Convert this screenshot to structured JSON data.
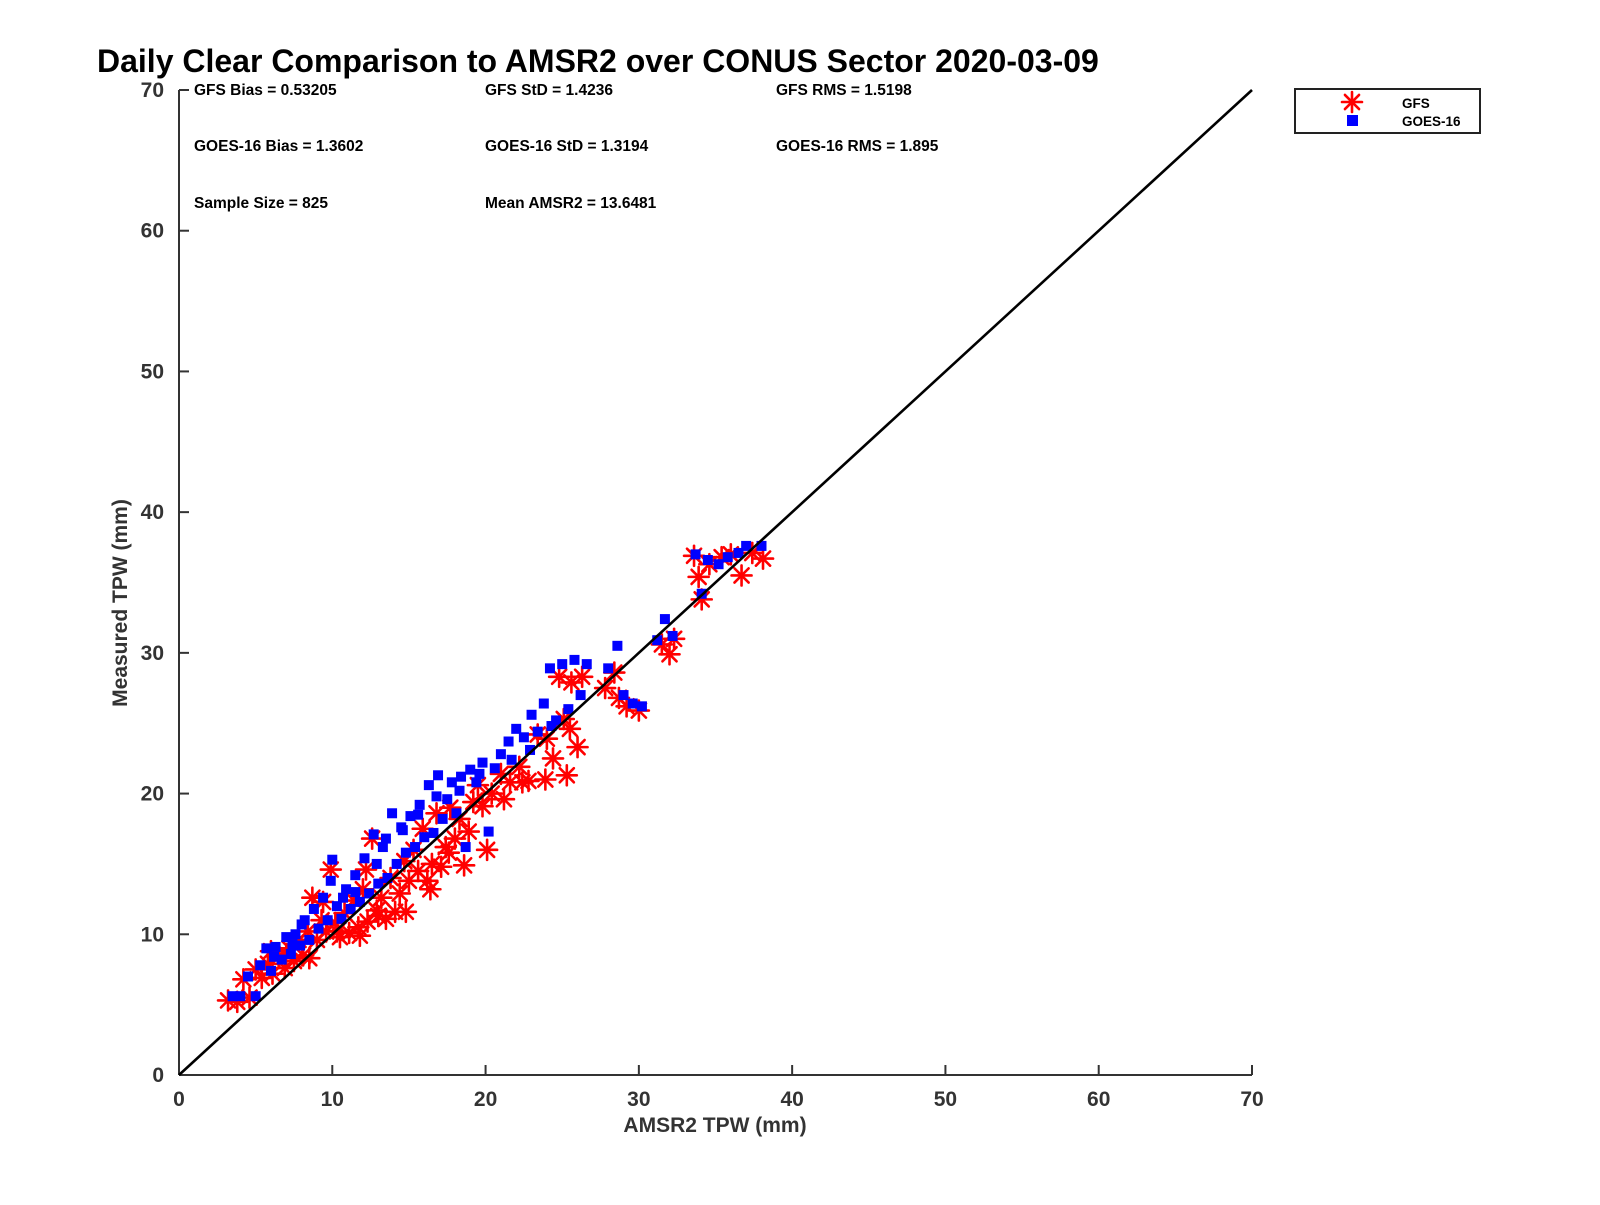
{
  "chart_data": {
    "type": "scatter",
    "title": "Daily Clear Comparison to AMSR2 over CONUS Sector 2020-03-09",
    "xlabel": "AMSR2 TPW (mm)",
    "ylabel": "Measured TPW (mm)",
    "xlim": [
      0,
      70
    ],
    "ylim": [
      0,
      70
    ],
    "xticks": [
      "0",
      "10",
      "20",
      "30",
      "40",
      "50",
      "60",
      "70"
    ],
    "yticks": [
      "0",
      "10",
      "20",
      "30",
      "40",
      "50",
      "60",
      "70"
    ],
    "grid": false,
    "legend_position": "outside-top-right",
    "reference_line": {
      "x": [
        0,
        70
      ],
      "y": [
        0,
        70
      ],
      "color": "#000000"
    },
    "stats": [
      [
        "GFS Bias = 0.53205",
        "GFS StD = 1.4236",
        "GFS RMS = 1.5198"
      ],
      [
        "GOES-16 Bias = 1.3602",
        "GOES-16 StD = 1.3194",
        "GOES-16 RMS = 1.895"
      ],
      [
        "Sample Size = 825",
        "Mean AMSR2 = 13.6481",
        ""
      ]
    ],
    "series": [
      {
        "name": "GFS",
        "marker": "asterisk",
        "color": "#ff0000",
        "points": [
          [
            3.2,
            5.3
          ],
          [
            3.8,
            5.2
          ],
          [
            4.2,
            6.8
          ],
          [
            4.6,
            5.5
          ],
          [
            5.0,
            7.5
          ],
          [
            5.4,
            6.9
          ],
          [
            5.8,
            7.9
          ],
          [
            6.1,
            7.2
          ],
          [
            6.5,
            8.4
          ],
          [
            6.9,
            7.6
          ],
          [
            7.2,
            9.0
          ],
          [
            7.5,
            8.1
          ],
          [
            7.8,
            9.6
          ],
          [
            8.1,
            8.5
          ],
          [
            8.4,
            10.2
          ],
          [
            8.7,
            12.6
          ],
          [
            9.0,
            9.6
          ],
          [
            9.3,
            11.0
          ],
          [
            9.6,
            10.2
          ],
          [
            9.9,
            14.6
          ],
          [
            10.2,
            10.8
          ],
          [
            10.5,
            9.8
          ],
          [
            10.8,
            11.5
          ],
          [
            11.1,
            10.1
          ],
          [
            11.4,
            12.4
          ],
          [
            11.7,
            10.5
          ],
          [
            12.0,
            13.2
          ],
          [
            12.3,
            10.9
          ],
          [
            12.6,
            16.8
          ],
          [
            12.9,
            11.7
          ],
          [
            13.2,
            12.6
          ],
          [
            13.5,
            11.1
          ],
          [
            13.8,
            14.0
          ],
          [
            14.1,
            11.6
          ],
          [
            14.4,
            12.9
          ],
          [
            14.7,
            15.2
          ],
          [
            15.0,
            13.8
          ],
          [
            15.3,
            16.0
          ],
          [
            15.6,
            14.5
          ],
          [
            15.9,
            17.5
          ],
          [
            16.2,
            13.8
          ],
          [
            16.5,
            15.0
          ],
          [
            16.8,
            18.6
          ],
          [
            17.1,
            14.8
          ],
          [
            17.4,
            16.2
          ],
          [
            17.7,
            19.0
          ],
          [
            18.0,
            16.8
          ],
          [
            18.3,
            18.2
          ],
          [
            18.6,
            14.9
          ],
          [
            18.9,
            17.3
          ],
          [
            19.2,
            19.4
          ],
          [
            19.5,
            20.6
          ],
          [
            20.1,
            16.0
          ],
          [
            20.4,
            20.0
          ],
          [
            21.0,
            21.4
          ],
          [
            21.6,
            20.8
          ],
          [
            22.2,
            21.9
          ],
          [
            22.8,
            20.9
          ],
          [
            23.4,
            24.2
          ],
          [
            23.9,
            21.0
          ],
          [
            24.4,
            22.5
          ],
          [
            24.8,
            28.3
          ],
          [
            25.1,
            25.3
          ],
          [
            25.3,
            21.3
          ],
          [
            25.6,
            27.9
          ],
          [
            26.0,
            23.3
          ],
          [
            26.3,
            28.3
          ],
          [
            27.8,
            27.5
          ],
          [
            28.4,
            28.6
          ],
          [
            28.7,
            26.8
          ],
          [
            29.2,
            26.2
          ],
          [
            30.0,
            25.9
          ],
          [
            31.5,
            30.6
          ],
          [
            32.0,
            29.9
          ],
          [
            32.3,
            31.0
          ],
          [
            33.6,
            36.9
          ],
          [
            33.9,
            35.4
          ],
          [
            34.1,
            33.8
          ],
          [
            34.6,
            36.3
          ],
          [
            35.4,
            36.8
          ],
          [
            36.0,
            37.0
          ],
          [
            36.7,
            35.5
          ],
          [
            37.4,
            37.1
          ],
          [
            38.1,
            36.7
          ],
          [
            6.0,
            8.8
          ],
          [
            7.0,
            8.6
          ],
          [
            8.5,
            8.3
          ],
          [
            10.3,
            10.2
          ],
          [
            11.8,
            9.9
          ],
          [
            13.0,
            11.3
          ],
          [
            14.8,
            11.6
          ],
          [
            16.4,
            13.2
          ],
          [
            17.6,
            15.8
          ],
          [
            19.8,
            19.1
          ],
          [
            21.2,
            19.6
          ],
          [
            22.4,
            20.8
          ],
          [
            24.0,
            23.9
          ],
          [
            25.5,
            24.6
          ],
          [
            9.4,
            12.3
          ],
          [
            12.2,
            14.6
          ]
        ]
      },
      {
        "name": "GOES-16",
        "marker": "square",
        "color": "#0000ff",
        "points": [
          [
            3.5,
            5.6
          ],
          [
            4.0,
            5.6
          ],
          [
            4.5,
            7.0
          ],
          [
            5.0,
            5.6
          ],
          [
            5.3,
            7.8
          ],
          [
            5.7,
            9.0
          ],
          [
            6.0,
            7.4
          ],
          [
            6.3,
            9.1
          ],
          [
            6.7,
            8.2
          ],
          [
            7.0,
            9.8
          ],
          [
            7.3,
            8.6
          ],
          [
            7.6,
            10.0
          ],
          [
            7.9,
            9.2
          ],
          [
            8.2,
            11.0
          ],
          [
            8.5,
            9.6
          ],
          [
            8.8,
            11.8
          ],
          [
            9.1,
            10.4
          ],
          [
            9.4,
            12.6
          ],
          [
            9.7,
            11.0
          ],
          [
            10.0,
            15.3
          ],
          [
            10.3,
            12.0
          ],
          [
            10.6,
            11.1
          ],
          [
            10.9,
            13.2
          ],
          [
            11.2,
            11.8
          ],
          [
            11.5,
            14.2
          ],
          [
            11.8,
            12.3
          ],
          [
            12.1,
            15.4
          ],
          [
            12.4,
            12.9
          ],
          [
            12.7,
            17.1
          ],
          [
            13.0,
            13.6
          ],
          [
            13.3,
            16.2
          ],
          [
            13.6,
            14.0
          ],
          [
            13.9,
            18.6
          ],
          [
            14.2,
            15.0
          ],
          [
            14.5,
            17.6
          ],
          [
            14.8,
            15.8
          ],
          [
            15.1,
            18.4
          ],
          [
            15.4,
            16.2
          ],
          [
            15.7,
            19.2
          ],
          [
            16.0,
            16.9
          ],
          [
            16.3,
            20.6
          ],
          [
            16.6,
            17.2
          ],
          [
            16.9,
            21.3
          ],
          [
            17.2,
            18.2
          ],
          [
            17.5,
            19.6
          ],
          [
            17.8,
            20.8
          ],
          [
            18.1,
            18.6
          ],
          [
            18.4,
            21.2
          ],
          [
            18.7,
            16.2
          ],
          [
            19.0,
            21.7
          ],
          [
            19.4,
            20.8
          ],
          [
            19.8,
            22.2
          ],
          [
            20.2,
            17.3
          ],
          [
            20.6,
            21.8
          ],
          [
            21.0,
            22.8
          ],
          [
            21.5,
            23.7
          ],
          [
            22.0,
            24.6
          ],
          [
            22.5,
            24.0
          ],
          [
            23.0,
            25.6
          ],
          [
            23.4,
            24.4
          ],
          [
            23.8,
            26.4
          ],
          [
            24.2,
            28.9
          ],
          [
            24.6,
            25.2
          ],
          [
            25.0,
            29.2
          ],
          [
            25.4,
            26.0
          ],
          [
            25.8,
            29.5
          ],
          [
            26.2,
            27.0
          ],
          [
            26.6,
            29.2
          ],
          [
            28.0,
            28.9
          ],
          [
            28.6,
            30.5
          ],
          [
            29.0,
            27.0
          ],
          [
            29.6,
            26.4
          ],
          [
            30.2,
            26.2
          ],
          [
            31.2,
            30.9
          ],
          [
            31.7,
            32.4
          ],
          [
            32.2,
            31.2
          ],
          [
            33.7,
            37.0
          ],
          [
            34.1,
            34.2
          ],
          [
            34.5,
            36.6
          ],
          [
            35.2,
            36.3
          ],
          [
            35.8,
            36.8
          ],
          [
            36.5,
            37.1
          ],
          [
            37.0,
            37.6
          ],
          [
            38.0,
            37.6
          ],
          [
            6.2,
            8.4
          ],
          [
            7.4,
            9.3
          ],
          [
            8.0,
            10.7
          ],
          [
            9.9,
            13.8
          ],
          [
            10.7,
            12.6
          ],
          [
            11.5,
            13.0
          ],
          [
            12.9,
            15.0
          ],
          [
            13.5,
            16.8
          ],
          [
            14.6,
            17.4
          ],
          [
            15.6,
            18.5
          ],
          [
            16.8,
            19.8
          ],
          [
            18.3,
            20.2
          ],
          [
            19.6,
            21.4
          ],
          [
            21.7,
            22.4
          ],
          [
            22.9,
            23.1
          ],
          [
            24.3,
            24.8
          ]
        ]
      }
    ]
  }
}
